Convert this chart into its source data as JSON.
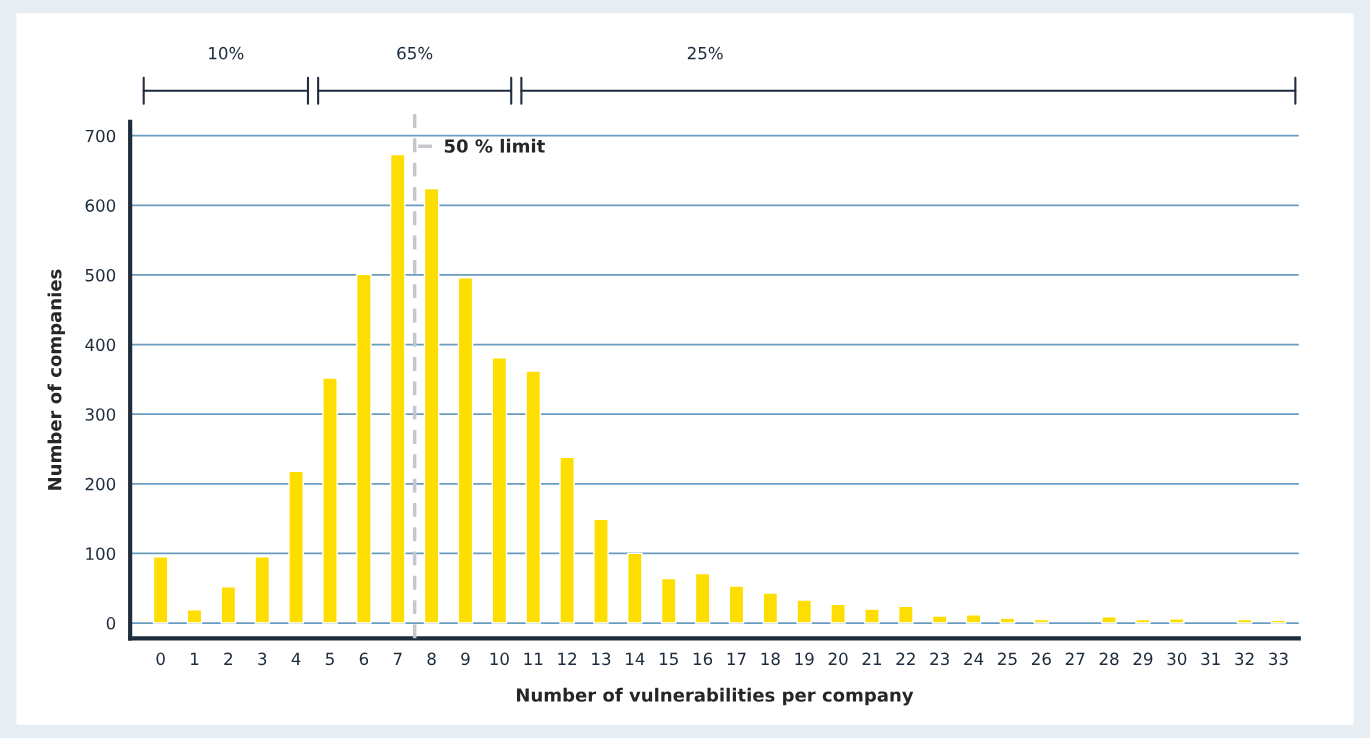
{
  "chart_data": {
    "type": "bar",
    "xlabel": "Number of vulnerabilities per company",
    "ylabel": "Number of companies",
    "x": [
      0,
      1,
      2,
      3,
      4,
      5,
      6,
      7,
      8,
      9,
      10,
      11,
      12,
      13,
      14,
      15,
      16,
      17,
      18,
      19,
      20,
      21,
      22,
      23,
      24,
      25,
      26,
      27,
      28,
      29,
      30,
      31,
      32,
      33
    ],
    "values": [
      95,
      19,
      52,
      95,
      218,
      352,
      501,
      673,
      624,
      496,
      381,
      362,
      238,
      149,
      100,
      64,
      71,
      53,
      43,
      33,
      27,
      20,
      24,
      10,
      12,
      7,
      5,
      null,
      9,
      5,
      6,
      null,
      5,
      4
    ],
    "color": "#fedd00",
    "xlim": [
      -0.9,
      33.6
    ],
    "xticks": [
      0,
      1,
      2,
      3,
      4,
      5,
      6,
      7,
      8,
      9,
      10,
      11,
      12,
      13,
      14,
      15,
      16,
      17,
      18,
      19,
      20,
      21,
      22,
      23,
      24,
      25,
      26,
      27,
      28,
      29,
      30,
      31,
      32,
      33
    ],
    "ylim": [
      -22,
      720
    ],
    "yticks": [
      0,
      100,
      200,
      300,
      400,
      500,
      600,
      700
    ],
    "grid": "y",
    "ref_lines": [
      {
        "axis": "x",
        "value": 7.5,
        "label": "50 % limit",
        "color": "#c4c7cb",
        "line_style": "dashed"
      }
    ],
    "annotations": [
      "10%",
      "65%",
      "25%"
    ]
  }
}
